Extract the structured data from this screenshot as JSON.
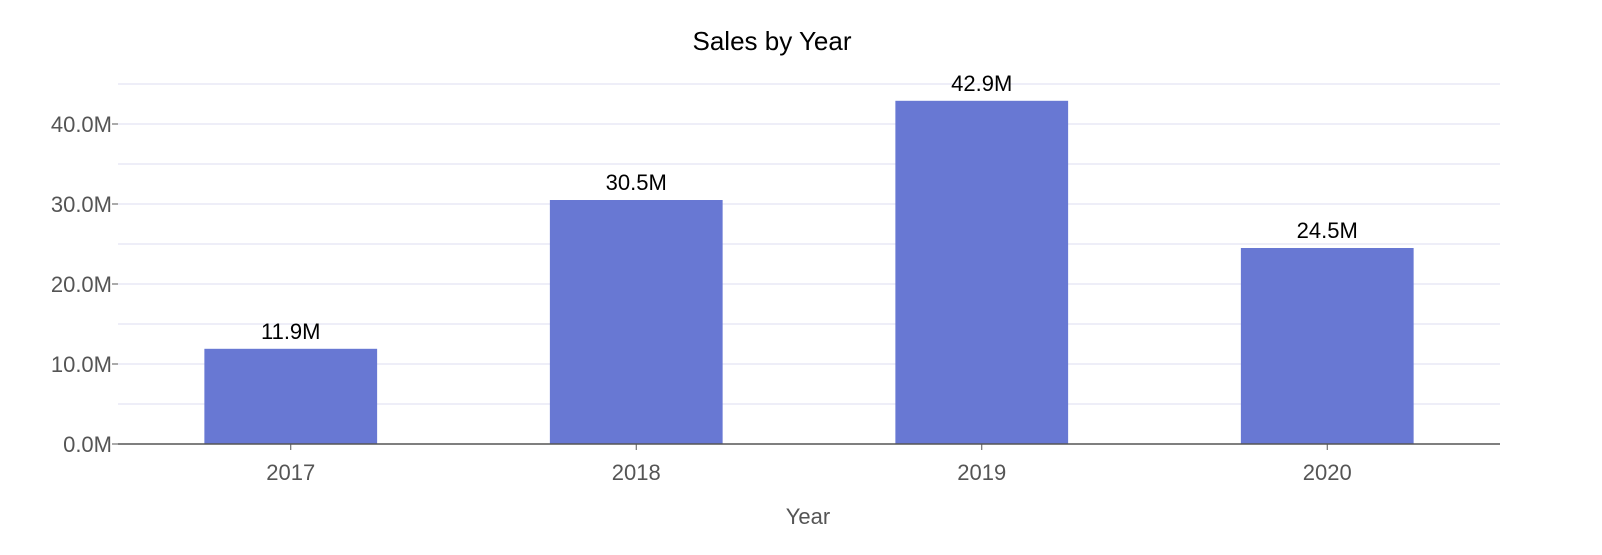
{
  "chart_data": {
    "type": "bar",
    "title": "Sales by Year",
    "xlabel": "Year",
    "ylabel": "",
    "categories": [
      "2017",
      "2018",
      "2019",
      "2020"
    ],
    "values": [
      11.9,
      30.5,
      42.9,
      24.5
    ],
    "value_labels": [
      "11.9M",
      "30.5M",
      "42.9M",
      "24.5M"
    ],
    "value_unit": "M",
    "ylim": [
      0,
      45
    ],
    "yticks": [
      0,
      10,
      20,
      30,
      40
    ],
    "ytick_labels": [
      "0.0M",
      "10.0M",
      "20.0M",
      "30.0M",
      "40.0M"
    ],
    "minor_gridlines_at": [
      5,
      15,
      25,
      35,
      45
    ],
    "grid": true,
    "legend": "none",
    "colors": {
      "bar": "#6878d3",
      "grid": "#dcdcf2",
      "axis": "#555555",
      "text": "#000000",
      "tick_text": "#555555"
    }
  }
}
